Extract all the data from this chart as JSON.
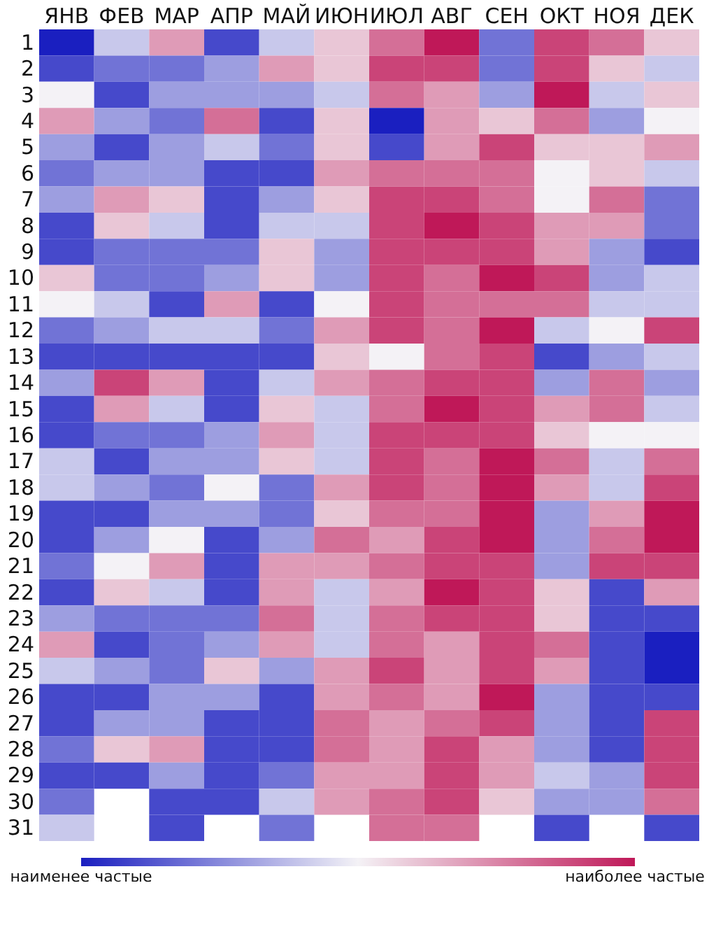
{
  "chart_data": {
    "type": "heatmap",
    "categories": [
      "ЯНВ",
      "ФЕВ",
      "МАР",
      "АПР",
      "МАЙ",
      "ИЮН",
      "ИЮЛ",
      "АВГ",
      "СЕН",
      "ОКТ",
      "НОЯ",
      "ДЕК"
    ],
    "y_categories": [
      "1",
      "2",
      "3",
      "4",
      "5",
      "6",
      "7",
      "8",
      "9",
      "10",
      "11",
      "12",
      "13",
      "14",
      "15",
      "16",
      "17",
      "18",
      "19",
      "20",
      "21",
      "22",
      "23",
      "24",
      "25",
      "26",
      "27",
      "28",
      "29",
      "30",
      "31"
    ],
    "clim": [
      0,
      10
    ],
    "cticks": [
      {
        "value": 0,
        "label": "наименее частые"
      },
      {
        "value": 10,
        "label": "наиболее частые"
      }
    ],
    "colors": [
      "#1a1fc0",
      "#f4f2f6",
      "#bf1858"
    ],
    "cells": [
      [
        0,
        4,
        7,
        1,
        4,
        6,
        8,
        10,
        2,
        9,
        8,
        6
      ],
      [
        1,
        2,
        2,
        3,
        7,
        6,
        9,
        9,
        2,
        9,
        6,
        4
      ],
      [
        5,
        1,
        3,
        3,
        3,
        4,
        8,
        7,
        3,
        10,
        4,
        6
      ],
      [
        7,
        3,
        2,
        8,
        1,
        6,
        0,
        7,
        6,
        8,
        3,
        5
      ],
      [
        3,
        1,
        3,
        4,
        2,
        6,
        1,
        7,
        9,
        6,
        6,
        7
      ],
      [
        2,
        3,
        3,
        1,
        1,
        7,
        8,
        8,
        8,
        5,
        6,
        4
      ],
      [
        3,
        7,
        6,
        1,
        3,
        6,
        9,
        9,
        8,
        5,
        8,
        2
      ],
      [
        1,
        6,
        4,
        1,
        4,
        4,
        9,
        10,
        9,
        7,
        7,
        2
      ],
      [
        1,
        2,
        2,
        2,
        6,
        3,
        9,
        9,
        9,
        7,
        3,
        1
      ],
      [
        6,
        2,
        2,
        3,
        6,
        3,
        9,
        8,
        10,
        9,
        3,
        4
      ],
      [
        5,
        4,
        1,
        7,
        1,
        5,
        9,
        8,
        8,
        8,
        4,
        4
      ],
      [
        2,
        3,
        4,
        4,
        2,
        7,
        9,
        8,
        10,
        4,
        5,
        9
      ],
      [
        1,
        1,
        1,
        1,
        1,
        6,
        5,
        8,
        9,
        1,
        3,
        4
      ],
      [
        3,
        9,
        7,
        1,
        4,
        7,
        8,
        9,
        9,
        3,
        8,
        3
      ],
      [
        1,
        7,
        4,
        1,
        6,
        4,
        8,
        10,
        9,
        7,
        8,
        4
      ],
      [
        1,
        2,
        2,
        3,
        7,
        4,
        9,
        9,
        9,
        6,
        5,
        5
      ],
      [
        4,
        1,
        3,
        3,
        6,
        4,
        9,
        8,
        10,
        8,
        4,
        8
      ],
      [
        4,
        3,
        2,
        5,
        2,
        7,
        9,
        8,
        10,
        7,
        4,
        9
      ],
      [
        1,
        1,
        3,
        3,
        2,
        6,
        8,
        8,
        10,
        3,
        7,
        10
      ],
      [
        1,
        3,
        5,
        1,
        3,
        8,
        7,
        9,
        10,
        3,
        8,
        10
      ],
      [
        2,
        5,
        7,
        1,
        7,
        7,
        8,
        9,
        9,
        3,
        9,
        9
      ],
      [
        1,
        6,
        4,
        1,
        7,
        4,
        7,
        10,
        9,
        6,
        1,
        7
      ],
      [
        3,
        2,
        2,
        2,
        8,
        4,
        8,
        9,
        9,
        6,
        1,
        1
      ],
      [
        7,
        1,
        2,
        3,
        7,
        4,
        8,
        7,
        9,
        8,
        1,
        0
      ],
      [
        4,
        3,
        2,
        6,
        3,
        7,
        9,
        7,
        9,
        7,
        1,
        0
      ],
      [
        1,
        1,
        3,
        3,
        1,
        7,
        8,
        7,
        10,
        3,
        1,
        1
      ],
      [
        1,
        3,
        3,
        1,
        1,
        8,
        7,
        8,
        9,
        3,
        1,
        9
      ],
      [
        2,
        6,
        7,
        1,
        1,
        8,
        7,
        9,
        7,
        3,
        1,
        9
      ],
      [
        1,
        1,
        3,
        1,
        2,
        7,
        7,
        9,
        7,
        4,
        3,
        9
      ],
      [
        2,
        null,
        1,
        1,
        4,
        7,
        8,
        9,
        6,
        3,
        3,
        8
      ],
      [
        4,
        null,
        1,
        null,
        2,
        null,
        8,
        8,
        null,
        1,
        null,
        1
      ]
    ]
  }
}
